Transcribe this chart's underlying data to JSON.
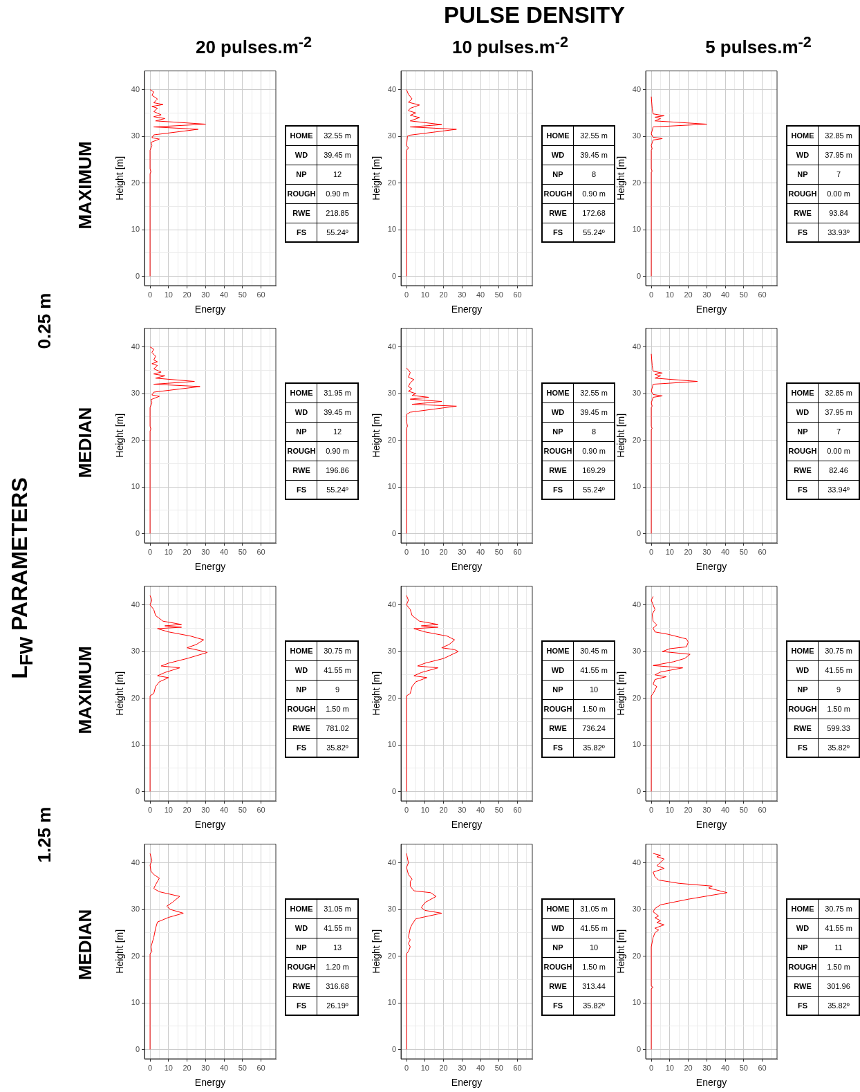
{
  "chart_data": [
    {
      "type": "other",
      "title": "PULSE DENSITY",
      "annotations": [
        "20 pulses.m$^{-2}$",
        "10 pulses.m$^{-2}$",
        "5 pulses.m$^{-2}$",
        "L$_{FW}$ PARAMETERS",
        "0.25 m",
        "1.25 m",
        "MAXIMUM",
        "MEDIAN",
        "MAXIMUM",
        "MEDIAN"
      ]
    },
    {
      "type": "line",
      "xlabel": "Energy",
      "ylabel": "Height [m]",
      "xlim": [
        -3,
        68
      ],
      "ylim": [
        -2,
        44
      ],
      "xticks": [
        0,
        {
          "value": 5,
          "label": null
        },
        10,
        {
          "value": 15,
          "label": null
        },
        20,
        {
          "value": 25,
          "label": null
        },
        30,
        {
          "value": 35,
          "label": null
        },
        40,
        {
          "value": 45,
          "label": null
        },
        50,
        {
          "value": 55,
          "label": null
        },
        60,
        {
          "value": 65,
          "label": null
        }
      ],
      "yticks": [
        0,
        {
          "value": 5,
          "label": null
        },
        10,
        {
          "value": 15,
          "label": null
        },
        20,
        {
          "value": 25,
          "label": null
        },
        30,
        {
          "value": 35,
          "label": null
        },
        40
      ],
      "grid": true,
      "marker": "none",
      "line_style": "solid",
      "series": [
        {
          "color": "#ff0000",
          "x": [
            0,
            0,
            0.5,
            0,
            0,
            1,
            0.5,
            5,
            1,
            2,
            26,
            2,
            30,
            3,
            8,
            2,
            6,
            2,
            4,
            1,
            7,
            2,
            4,
            1,
            2,
            0
          ],
          "values": [
            0,
            22,
            22.4,
            23,
            27,
            28,
            28.7,
            29.4,
            29.7,
            30.3,
            31.5,
            32,
            32.6,
            33.3,
            33.8,
            34.2,
            34.6,
            35.3,
            36,
            36.4,
            36.8,
            37.2,
            38,
            38.8,
            39.5,
            40
          ]
        }
      ],
      "annotations": [
        "HOME",
        "32.55 m",
        "WD",
        "39.45 m",
        "NP",
        "12",
        "ROUGH",
        "0.90 m",
        "RWE",
        "218.85",
        "FS",
        "55.24º"
      ]
    },
    {
      "type": "line",
      "xlabel": "Energy",
      "ylabel": "Height [m]",
      "xlim": [
        -3,
        68
      ],
      "ylim": [
        -2,
        44
      ],
      "xticks": [
        0,
        {
          "value": 5,
          "label": null
        },
        10,
        {
          "value": 15,
          "label": null
        },
        20,
        {
          "value": 25,
          "label": null
        },
        30,
        {
          "value": 35,
          "label": null
        },
        40,
        {
          "value": 45,
          "label": null
        },
        50,
        {
          "value": 55,
          "label": null
        },
        60,
        {
          "value": 65,
          "label": null
        }
      ],
      "yticks": [
        0,
        {
          "value": 5,
          "label": null
        },
        10,
        {
          "value": 15,
          "label": null
        },
        20,
        {
          "value": 25,
          "label": null
        },
        30,
        {
          "value": 35,
          "label": null
        },
        40
      ],
      "grid": true,
      "marker": "none",
      "line_style": "solid",
      "series": [
        {
          "color": "#ff0000",
          "x": [
            0,
            0,
            1,
            0,
            0.5,
            1,
            27,
            2,
            19,
            2,
            7,
            2,
            5,
            1,
            2,
            7,
            1,
            3,
            1,
            0
          ],
          "values": [
            0,
            27,
            27.5,
            28,
            30,
            30.2,
            31.5,
            32,
            32.5,
            33.3,
            34,
            34.5,
            35,
            35.5,
            36,
            36.7,
            37.3,
            38,
            39,
            40
          ]
        }
      ],
      "annotations": [
        "HOME",
        "32.55 m",
        "WD",
        "39.45 m",
        "NP",
        "8",
        "ROUGH",
        "0.90 m",
        "RWE",
        "172.68",
        "FS",
        "55.24º"
      ]
    },
    {
      "type": "line",
      "xlabel": "Energy",
      "ylabel": "Height [m]",
      "xlim": [
        -3,
        68
      ],
      "ylim": [
        -2,
        44
      ],
      "xticks": [
        0,
        {
          "value": 5,
          "label": null
        },
        10,
        {
          "value": 15,
          "label": null
        },
        20,
        {
          "value": 25,
          "label": null
        },
        30,
        {
          "value": 35,
          "label": null
        },
        40,
        {
          "value": 45,
          "label": null
        },
        50,
        {
          "value": 55,
          "label": null
        },
        60,
        {
          "value": 65,
          "label": null
        }
      ],
      "yticks": [
        0,
        {
          "value": 5,
          "label": null
        },
        10,
        {
          "value": 15,
          "label": null
        },
        20,
        {
          "value": 25,
          "label": null
        },
        30,
        {
          "value": 35,
          "label": null
        },
        40
      ],
      "grid": true,
      "marker": "none",
      "line_style": "solid",
      "series": [
        {
          "color": "#ff0000",
          "x": [
            0,
            0,
            0.5,
            0,
            0,
            0.5,
            0,
            1,
            6,
            1,
            0,
            1,
            30,
            2,
            5,
            2,
            7,
            1,
            0.5,
            0
          ],
          "values": [
            0,
            22.3,
            22.5,
            23,
            27,
            27.3,
            28,
            29.2,
            29.5,
            29.8,
            30.5,
            32,
            32.6,
            33.3,
            33.8,
            34.1,
            34.4,
            34.8,
            36,
            38.5
          ]
        }
      ],
      "annotations": [
        "HOME",
        "32.85 m",
        "WD",
        "37.95 m",
        "NP",
        "7",
        "ROUGH",
        "0.00 m",
        "RWE",
        "93.84",
        "FS",
        "33.93º"
      ]
    },
    {
      "type": "line",
      "xlabel": "Energy",
      "ylabel": "Height [m]",
      "xlim": [
        -3,
        68
      ],
      "ylim": [
        -2,
        44
      ],
      "xticks": [
        0,
        {
          "value": 5,
          "label": null
        },
        10,
        {
          "value": 15,
          "label": null
        },
        20,
        {
          "value": 25,
          "label": null
        },
        30,
        {
          "value": 35,
          "label": null
        },
        40,
        {
          "value": 45,
          "label": null
        },
        50,
        {
          "value": 55,
          "label": null
        },
        60,
        {
          "value": 65,
          "label": null
        }
      ],
      "yticks": [
        0,
        {
          "value": 5,
          "label": null
        },
        10,
        {
          "value": 15,
          "label": null
        },
        20,
        {
          "value": 25,
          "label": null
        },
        30,
        {
          "value": 35,
          "label": null
        },
        40
      ],
      "grid": true,
      "marker": "none",
      "line_style": "solid",
      "series": [
        {
          "color": "#ff0000",
          "x": [
            0,
            0,
            0.5,
            0,
            0,
            1,
            0.5,
            5,
            1,
            2,
            27,
            2,
            24,
            3,
            8,
            2,
            6,
            2,
            4,
            1,
            4,
            2,
            3,
            1,
            2,
            0
          ],
          "values": [
            0,
            22,
            22.4,
            23,
            27,
            28,
            28.7,
            29.4,
            29.7,
            30.3,
            31.5,
            32,
            32.6,
            33.3,
            33.8,
            34.2,
            34.6,
            35.3,
            36,
            36.4,
            36.8,
            37.2,
            38,
            38.8,
            39.5,
            40
          ]
        }
      ],
      "annotations": [
        "HOME",
        "31.95 m",
        "WD",
        "39.45 m",
        "NP",
        "12",
        "ROUGH",
        "0.90 m",
        "RWE",
        "196.86",
        "FS",
        "55.24º"
      ]
    },
    {
      "type": "line",
      "xlabel": "Energy",
      "ylabel": "Height [m]",
      "xlim": [
        -3,
        68
      ],
      "ylim": [
        -2,
        44
      ],
      "xticks": [
        0,
        {
          "value": 5,
          "label": null
        },
        10,
        {
          "value": 15,
          "label": null
        },
        20,
        {
          "value": 25,
          "label": null
        },
        30,
        {
          "value": 35,
          "label": null
        },
        40,
        {
          "value": 45,
          "label": null
        },
        50,
        {
          "value": 55,
          "label": null
        },
        60,
        {
          "value": 65,
          "label": null
        }
      ],
      "yticks": [
        0,
        {
          "value": 5,
          "label": null
        },
        10,
        {
          "value": 15,
          "label": null
        },
        20,
        {
          "value": 25,
          "label": null
        },
        30,
        {
          "value": 35,
          "label": null
        },
        40
      ],
      "grid": true,
      "marker": "none",
      "line_style": "solid",
      "series": [
        {
          "color": "#ff0000",
          "x": [
            0,
            0,
            0.5,
            0,
            0,
            2,
            27,
            3,
            19,
            2,
            12,
            3,
            5,
            1,
            3,
            1,
            2,
            4,
            1,
            2,
            1,
            0
          ],
          "values": [
            0,
            22.5,
            23,
            24,
            25.5,
            26,
            27.3,
            27.7,
            28.3,
            28.8,
            29.2,
            29.6,
            30,
            30.5,
            31,
            31.5,
            32.3,
            33,
            33.5,
            34.5,
            35,
            35.5
          ]
        }
      ],
      "annotations": [
        "HOME",
        "32.55 m",
        "WD",
        "39.45 m",
        "NP",
        "8",
        "ROUGH",
        "0.90 m",
        "RWE",
        "169.29",
        "FS",
        "55.24º"
      ]
    },
    {
      "type": "line",
      "xlabel": "Energy",
      "ylabel": "Height [m]",
      "xlim": [
        -3,
        68
      ],
      "ylim": [
        -2,
        44
      ],
      "xticks": [
        0,
        {
          "value": 5,
          "label": null
        },
        10,
        {
          "value": 15,
          "label": null
        },
        20,
        {
          "value": 25,
          "label": null
        },
        30,
        {
          "value": 35,
          "label": null
        },
        40,
        {
          "value": 45,
          "label": null
        },
        50,
        {
          "value": 55,
          "label": null
        },
        60,
        {
          "value": 65,
          "label": null
        }
      ],
      "yticks": [
        0,
        {
          "value": 5,
          "label": null
        },
        10,
        {
          "value": 15,
          "label": null
        },
        20,
        {
          "value": 25,
          "label": null
        },
        30,
        {
          "value": 35,
          "label": null
        },
        40
      ],
      "grid": true,
      "marker": "none",
      "line_style": "solid",
      "series": [
        {
          "color": "#ff0000",
          "x": [
            0,
            0,
            0.5,
            0,
            0,
            0.5,
            0,
            1,
            6,
            1,
            0,
            1,
            25,
            2,
            5,
            2,
            6,
            1,
            0.5,
            0
          ],
          "values": [
            0,
            22.3,
            22.5,
            23,
            27,
            27.3,
            28,
            29.2,
            29.5,
            29.8,
            30.5,
            32,
            32.6,
            33.3,
            33.8,
            34.1,
            34.4,
            34.8,
            36,
            38.5
          ]
        }
      ],
      "annotations": [
        "HOME",
        "32.85 m",
        "WD",
        "37.95 m",
        "NP",
        "7",
        "ROUGH",
        "0.00 m",
        "RWE",
        "82.46",
        "FS",
        "33.94º"
      ]
    },
    {
      "type": "line",
      "xlabel": "Energy",
      "ylabel": "Height [m]",
      "xlim": [
        -3,
        68
      ],
      "ylim": [
        -2,
        44
      ],
      "xticks": [
        0,
        {
          "value": 5,
          "label": null
        },
        10,
        {
          "value": 15,
          "label": null
        },
        20,
        {
          "value": 25,
          "label": null
        },
        30,
        {
          "value": 35,
          "label": null
        },
        40,
        {
          "value": 45,
          "label": null
        },
        50,
        {
          "value": 55,
          "label": null
        },
        60,
        {
          "value": 65,
          "label": null
        }
      ],
      "yticks": [
        0,
        {
          "value": 5,
          "label": null
        },
        10,
        {
          "value": 15,
          "label": null
        },
        20,
        {
          "value": 25,
          "label": null
        },
        30,
        {
          "value": 35,
          "label": null
        },
        40
      ],
      "grid": true,
      "marker": "none",
      "line_style": "solid",
      "series": [
        {
          "color": "#ff0000",
          "x": [
            0,
            0,
            2,
            3,
            5,
            10,
            4,
            8,
            16,
            6,
            10,
            20,
            31,
            27,
            20,
            25,
            29,
            22,
            10,
            4,
            17,
            8,
            17,
            7,
            3,
            2,
            0,
            1,
            0
          ],
          "values": [
            0,
            20.5,
            21,
            22.5,
            23.5,
            24.4,
            24.8,
            25.5,
            26.5,
            26.9,
            27.5,
            28.5,
            29.8,
            30.2,
            30.8,
            31.5,
            32.5,
            33.3,
            34.2,
            34.9,
            35.2,
            35.5,
            35.8,
            36.5,
            37.7,
            39,
            40,
            41,
            42
          ]
        }
      ],
      "annotations": [
        "HOME",
        "30.75 m",
        "WD",
        "41.55 m",
        "NP",
        "9",
        "ROUGH",
        "1.50 m",
        "RWE",
        "781.02",
        "FS",
        "35.82º"
      ]
    },
    {
      "type": "line",
      "xlabel": "Energy",
      "ylabel": "Height [m]",
      "xlim": [
        -3,
        68
      ],
      "ylim": [
        -2,
        44
      ],
      "xticks": [
        0,
        {
          "value": 5,
          "label": null
        },
        10,
        {
          "value": 15,
          "label": null
        },
        20,
        {
          "value": 25,
          "label": null
        },
        30,
        {
          "value": 35,
          "label": null
        },
        40,
        {
          "value": 45,
          "label": null
        },
        50,
        {
          "value": 55,
          "label": null
        },
        60,
        {
          "value": 65,
          "label": null
        }
      ],
      "yticks": [
        0,
        {
          "value": 5,
          "label": null
        },
        10,
        {
          "value": 15,
          "label": null
        },
        20,
        {
          "value": 25,
          "label": null
        },
        30,
        {
          "value": 35,
          "label": null
        },
        40
      ],
      "grid": true,
      "marker": "none",
      "line_style": "solid",
      "series": [
        {
          "color": "#ff0000",
          "x": [
            0,
            0,
            2,
            3,
            5,
            11,
            4,
            8,
            17,
            6,
            10,
            20,
            28,
            26,
            19,
            23,
            26,
            22,
            10,
            4,
            17,
            8,
            17,
            7,
            3,
            2,
            0,
            1,
            0
          ],
          "values": [
            0,
            20.5,
            21,
            22.5,
            23.5,
            24.4,
            24.8,
            25.5,
            26.5,
            26.9,
            27.5,
            28.5,
            30,
            30.4,
            30.8,
            31.5,
            32.5,
            33.3,
            34.2,
            34.9,
            35.2,
            35.5,
            35.8,
            36.5,
            37.7,
            39,
            40,
            41,
            42
          ]
        }
      ],
      "annotations": [
        "HOME",
        "30.45 m",
        "WD",
        "41.55 m",
        "NP",
        "10",
        "ROUGH",
        "1.50 m",
        "RWE",
        "736.24",
        "FS",
        "35.82º"
      ]
    },
    {
      "type": "line",
      "xlabel": "Energy",
      "ylabel": "Height [m]",
      "xlim": [
        -3,
        68
      ],
      "ylim": [
        -2,
        44
      ],
      "xticks": [
        0,
        {
          "value": 5,
          "label": null
        },
        10,
        {
          "value": 15,
          "label": null
        },
        20,
        {
          "value": 25,
          "label": null
        },
        30,
        {
          "value": 35,
          "label": null
        },
        40,
        {
          "value": 45,
          "label": null
        },
        50,
        {
          "value": 55,
          "label": null
        },
        60,
        {
          "value": 65,
          "label": null
        }
      ],
      "yticks": [
        0,
        {
          "value": 5,
          "label": null
        },
        10,
        {
          "value": 15,
          "label": null
        },
        20,
        {
          "value": 25,
          "label": null
        },
        30,
        {
          "value": 35,
          "label": null
        },
        40
      ],
      "grid": true,
      "marker": "none",
      "line_style": "solid",
      "series": [
        {
          "color": "#ff0000",
          "x": [
            0,
            0,
            1,
            3,
            1,
            2,
            8,
            2,
            5,
            17,
            1,
            12,
            18,
            21,
            6,
            10,
            19,
            20,
            19,
            9,
            2,
            1,
            3,
            1,
            0.5,
            2,
            1,
            0,
            1
          ],
          "values": [
            0,
            20.5,
            21,
            22.5,
            23,
            24,
            24.6,
            25,
            25.6,
            26.5,
            27,
            27.8,
            28.5,
            29.4,
            30,
            30.6,
            31,
            32,
            32.7,
            33.7,
            34.2,
            35,
            35.7,
            36.5,
            38,
            39,
            40,
            41,
            41.8
          ]
        }
      ],
      "annotations": [
        "HOME",
        "30.75 m",
        "WD",
        "41.55 m",
        "NP",
        "9",
        "ROUGH",
        "1.50 m",
        "RWE",
        "599.33",
        "FS",
        "35.82º"
      ]
    },
    {
      "type": "line",
      "xlabel": "Energy",
      "ylabel": "Height [m]",
      "xlim": [
        -3,
        68
      ],
      "ylim": [
        -2,
        44
      ],
      "xticks": [
        0,
        {
          "value": 5,
          "label": null
        },
        10,
        {
          "value": 15,
          "label": null
        },
        20,
        {
          "value": 25,
          "label": null
        },
        30,
        {
          "value": 35,
          "label": null
        },
        40,
        {
          "value": 45,
          "label": null
        },
        50,
        {
          "value": 55,
          "label": null
        },
        60,
        {
          "value": 65,
          "label": null
        }
      ],
      "yticks": [
        0,
        {
          "value": 5,
          "label": null
        },
        10,
        {
          "value": 15,
          "label": null
        },
        20,
        {
          "value": 25,
          "label": null
        },
        30,
        {
          "value": 35,
          "label": null
        },
        40
      ],
      "grid": true,
      "marker": "none",
      "line_style": "solid",
      "series": [
        {
          "color": "#ff0000",
          "x": [
            0,
            0,
            1,
            0.5,
            2,
            3,
            4,
            10,
            18,
            11,
            9,
            12,
            16,
            5,
            2,
            3,
            5,
            2,
            0.5,
            0,
            1,
            0
          ],
          "values": [
            0,
            20.5,
            21,
            22,
            24,
            26,
            27.3,
            28.3,
            29.2,
            30,
            30.7,
            31.5,
            32.8,
            33.8,
            34.5,
            35.3,
            36.7,
            37.5,
            38.2,
            39.5,
            40.5,
            42
          ]
        }
      ],
      "annotations": [
        "HOME",
        "31.05 m",
        "WD",
        "41.55 m",
        "NP",
        "13",
        "ROUGH",
        "1.20 m",
        "RWE",
        "316.68",
        "FS",
        "26.19º"
      ]
    },
    {
      "type": "line",
      "xlabel": "Energy",
      "ylabel": "Height [m]",
      "xlim": [
        -3,
        68
      ],
      "ylim": [
        -2,
        44
      ],
      "xticks": [
        0,
        {
          "value": 5,
          "label": null
        },
        10,
        {
          "value": 15,
          "label": null
        },
        20,
        {
          "value": 25,
          "label": null
        },
        30,
        {
          "value": 35,
          "label": null
        },
        40,
        {
          "value": 45,
          "label": null
        },
        50,
        {
          "value": 55,
          "label": null
        },
        60,
        {
          "value": 65,
          "label": null
        }
      ],
      "yticks": [
        0,
        {
          "value": 5,
          "label": null
        },
        10,
        {
          "value": 15,
          "label": null
        },
        20,
        {
          "value": 25,
          "label": null
        },
        30,
        {
          "value": 35,
          "label": null
        },
        40
      ],
      "grid": true,
      "marker": "none",
      "line_style": "solid",
      "series": [
        {
          "color": "#ff0000",
          "x": [
            0,
            0,
            1,
            2,
            1,
            2,
            1,
            2,
            3,
            5,
            19,
            10,
            8,
            10,
            16,
            13,
            4,
            2,
            2,
            3,
            1,
            0,
            1,
            0
          ],
          "values": [
            0,
            20.5,
            21,
            22,
            22.7,
            23.5,
            24,
            26,
            26.8,
            28,
            29.2,
            29.8,
            30.4,
            31.5,
            32.8,
            33.6,
            34,
            35,
            36,
            36.5,
            37.5,
            39,
            40,
            42
          ]
        }
      ],
      "annotations": [
        "HOME",
        "31.05 m",
        "WD",
        "41.55 m",
        "NP",
        "10",
        "ROUGH",
        "1.50 m",
        "RWE",
        "313.44",
        "FS",
        "35.82º"
      ]
    },
    {
      "type": "line",
      "xlabel": "Energy",
      "ylabel": "Height [m]",
      "xlim": [
        -3,
        68
      ],
      "ylim": [
        -2,
        44
      ],
      "xticks": [
        0,
        {
          "value": 5,
          "label": null
        },
        10,
        {
          "value": 15,
          "label": null
        },
        20,
        {
          "value": 25,
          "label": null
        },
        30,
        {
          "value": 35,
          "label": null
        },
        40,
        {
          "value": 45,
          "label": null
        },
        50,
        {
          "value": 55,
          "label": null
        },
        60,
        {
          "value": 65,
          "label": null
        }
      ],
      "yticks": [
        0,
        {
          "value": 5,
          "label": null
        },
        10,
        {
          "value": 15,
          "label": null
        },
        20,
        {
          "value": 25,
          "label": null
        },
        30,
        {
          "value": 35,
          "label": null
        },
        40
      ],
      "grid": true,
      "marker": "none",
      "line_style": "solid",
      "series": [
        {
          "color": "#ff0000",
          "x": [
            0,
            0,
            1,
            0,
            0,
            1,
            2,
            4,
            2,
            7,
            3,
            5,
            2,
            4,
            1,
            2,
            5,
            20,
            41,
            31,
            33,
            15,
            4,
            2,
            1,
            7,
            3,
            7,
            3,
            5,
            1
          ],
          "values": [
            0,
            13,
            13.3,
            13.6,
            22,
            24,
            25,
            25.6,
            26,
            26.7,
            27.2,
            27.6,
            28.2,
            28.6,
            29.5,
            30.2,
            31,
            32.2,
            33.6,
            34.6,
            35,
            35.6,
            36.3,
            37,
            38,
            38.8,
            39.4,
            40.8,
            41.3,
            41.6,
            42
          ]
        }
      ],
      "annotations": [
        "HOME",
        "30.75 m",
        "WD",
        "41.55 m",
        "NP",
        "11",
        "ROUGH",
        "1.50 m",
        "RWE",
        "301.96",
        "FS",
        "35.82º"
      ]
    }
  ]
}
